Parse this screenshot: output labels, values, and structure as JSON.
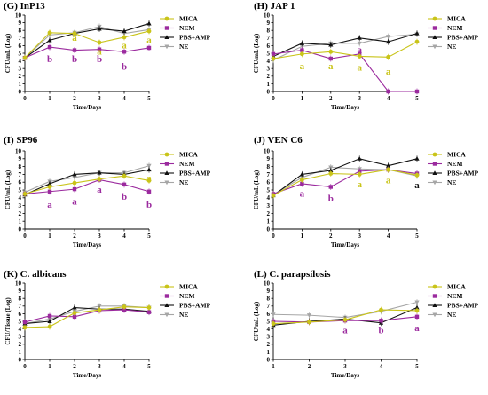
{
  "colors": {
    "MICA": "#c9c419",
    "NEM": "#9b2a9e",
    "PBS+AMP": "#111111",
    "NE": "#a6a6a6"
  },
  "chart_data": [
    {
      "type": "line",
      "title": "(G) InP13",
      "xlabel": "Time/Days",
      "ylabel": "CFU/mL (Log)",
      "xlim": [
        0,
        5
      ],
      "ylim": [
        0,
        10
      ],
      "x": [
        0,
        1,
        2,
        3,
        4,
        5
      ],
      "xticks": [
        "0",
        "1",
        "2",
        "3",
        "4",
        "5"
      ],
      "yticks": [
        "0",
        "1",
        "2",
        "3",
        "4",
        "5",
        "6",
        "7",
        "8",
        "9",
        "10"
      ],
      "series": [
        {
          "name": "MICA",
          "values": [
            4.4,
            7.7,
            7.6,
            6.4,
            7.1,
            7.9
          ]
        },
        {
          "name": "NEM",
          "values": [
            4.4,
            5.8,
            5.4,
            5.5,
            5.2,
            5.7
          ]
        },
        {
          "name": "PBS+AMP",
          "values": [
            4.4,
            6.7,
            7.6,
            8.2,
            7.9,
            8.9
          ]
        },
        {
          "name": "NE",
          "values": [
            4.4,
            7.4,
            7.7,
            8.5,
            7.6,
            8.1
          ]
        }
      ],
      "annotations": [
        {
          "series": "MICA",
          "x": 2,
          "y": 7.1,
          "text": "a"
        },
        {
          "series": "MICA",
          "x": 3,
          "y": 5.3,
          "text": "a"
        },
        {
          "series": "MICA",
          "x": 4,
          "y": 6.1,
          "text": "a"
        },
        {
          "series": "MICA",
          "x": 5,
          "y": 6.8,
          "text": "a"
        },
        {
          "series": "NEM",
          "x": 1,
          "y": 4.3,
          "text": "b"
        },
        {
          "series": "NEM",
          "x": 2,
          "y": 4.3,
          "text": "b"
        },
        {
          "series": "NEM",
          "x": 3,
          "y": 4.3,
          "text": "b"
        },
        {
          "series": "NEM",
          "x": 4,
          "y": 3.3,
          "text": "b"
        }
      ]
    },
    {
      "type": "line",
      "title": "(H) JAP 1",
      "xlabel": "Time/Days",
      "ylabel": "CFU/mL (Log)",
      "xlim": [
        0,
        5
      ],
      "ylim": [
        0,
        10
      ],
      "x": [
        0,
        1,
        2,
        3,
        4,
        5
      ],
      "xticks": [
        "0",
        "1",
        "2",
        "3",
        "4",
        "5"
      ],
      "yticks": [
        "0",
        "1",
        "2",
        "3",
        "4",
        "5",
        "6",
        "7",
        "8",
        "9",
        "10"
      ],
      "series": [
        {
          "name": "MICA",
          "values": [
            4.3,
            4.9,
            5.2,
            4.6,
            4.5,
            6.5
          ]
        },
        {
          "name": "NEM",
          "values": [
            4.9,
            5.4,
            4.3,
            4.9,
            0.0,
            0.0
          ]
        },
        {
          "name": "PBS+AMP",
          "values": [
            4.6,
            6.3,
            6.1,
            7.0,
            6.5,
            7.6
          ]
        },
        {
          "name": "NE",
          "values": [
            4.1,
            5.9,
            6.3,
            6.3,
            7.2,
            7.5
          ]
        }
      ],
      "annotations": [
        {
          "series": "MICA",
          "x": 1,
          "y": 3.4,
          "text": "a"
        },
        {
          "series": "MICA",
          "x": 2,
          "y": 3.4,
          "text": "a"
        },
        {
          "series": "MICA",
          "x": 3,
          "y": 3.2,
          "text": "a"
        },
        {
          "series": "MICA",
          "x": 4,
          "y": 2.7,
          "text": "a"
        },
        {
          "series": "NEM",
          "x": 3,
          "y": 5.5,
          "text": "a"
        }
      ]
    },
    {
      "type": "line",
      "title": "(I) SP96",
      "xlabel": "Time/Days",
      "ylabel": "CFU/mL (Log)",
      "xlim": [
        0,
        5
      ],
      "ylim": [
        0,
        10
      ],
      "x": [
        0,
        1,
        2,
        3,
        4,
        5
      ],
      "xticks": [
        "0",
        "1",
        "2",
        "3",
        "4",
        "5"
      ],
      "yticks": [
        "0",
        "1",
        "2",
        "3",
        "4",
        "5",
        "6",
        "7",
        "8",
        "9",
        "10"
      ],
      "series": [
        {
          "name": "MICA",
          "values": [
            4.5,
            5.4,
            5.9,
            6.4,
            6.8,
            6.2
          ]
        },
        {
          "name": "NEM",
          "values": [
            4.5,
            4.8,
            5.1,
            6.3,
            5.7,
            4.8
          ]
        },
        {
          "name": "PBS+AMP",
          "values": [
            4.4,
            5.8,
            7.0,
            7.2,
            7.0,
            7.6
          ]
        },
        {
          "name": "NE",
          "values": [
            4.7,
            6.1,
            6.6,
            7.2,
            7.2,
            8.1
          ]
        }
      ],
      "annotations": [
        {
          "series": "MICA",
          "x": 5,
          "y": 6.6,
          "text": "a"
        },
        {
          "series": "NEM",
          "x": 1,
          "y": 3.2,
          "text": "a"
        },
        {
          "series": "NEM",
          "x": 2,
          "y": 3.6,
          "text": "a"
        },
        {
          "series": "NEM",
          "x": 3,
          "y": 5.1,
          "text": "a"
        },
        {
          "series": "NEM",
          "x": 4,
          "y": 4.2,
          "text": "b"
        },
        {
          "series": "NEM",
          "x": 5,
          "y": 3.2,
          "text": "b"
        }
      ]
    },
    {
      "type": "line",
      "title": "(J) VEN C6",
      "xlabel": "Time/Days",
      "ylabel": "CFU/mL (Log)",
      "xlim": [
        0,
        5
      ],
      "ylim": [
        0,
        10
      ],
      "x": [
        0,
        1,
        2,
        3,
        4,
        5
      ],
      "xticks": [
        "0",
        "1",
        "2",
        "3",
        "4",
        "5"
      ],
      "yticks": [
        "0",
        "1",
        "2",
        "3",
        "4",
        "5",
        "6",
        "7",
        "8",
        "9",
        "10"
      ],
      "series": [
        {
          "name": "MICA",
          "values": [
            4.3,
            6.3,
            7.1,
            7.0,
            7.6,
            6.9
          ]
        },
        {
          "name": "NEM",
          "values": [
            4.5,
            5.8,
            5.4,
            7.4,
            7.6,
            7.1
          ]
        },
        {
          "name": "PBS+AMP",
          "values": [
            4.3,
            7.0,
            7.5,
            9.0,
            8.1,
            9.0
          ]
        },
        {
          "name": "NE",
          "values": [
            4.4,
            6.6,
            7.9,
            7.7,
            7.6,
            6.8
          ]
        }
      ],
      "annotations": [
        {
          "series": "MICA",
          "x": 3,
          "y": 5.8,
          "text": "a"
        },
        {
          "series": "MICA",
          "x": 4,
          "y": 6.3,
          "text": "a"
        },
        {
          "series": "NEM",
          "x": 1,
          "y": 4.6,
          "text": "a"
        },
        {
          "series": "NEM",
          "x": 2,
          "y": 4.0,
          "text": "b"
        },
        {
          "series": "PBS+AMP",
          "x": 5,
          "y": 5.7,
          "text": "a"
        }
      ]
    },
    {
      "type": "line",
      "title": "(K) C. albicans",
      "xlabel": "Time/Days",
      "ylabel": "CFU/Tissue (Log)",
      "xlim": [
        0,
        5
      ],
      "ylim": [
        0,
        10
      ],
      "x": [
        0,
        1,
        2,
        3,
        4,
        5
      ],
      "xticks": [
        "0",
        "1",
        "2",
        "3",
        "4",
        "5"
      ],
      "yticks": [
        "0",
        "1",
        "2",
        "3",
        "4",
        "5",
        "6",
        "7",
        "8",
        "9",
        "10"
      ],
      "series": [
        {
          "name": "MICA",
          "values": [
            4.2,
            4.3,
            6.1,
            6.5,
            6.9,
            6.8
          ]
        },
        {
          "name": "NEM",
          "values": [
            4.9,
            5.7,
            5.6,
            6.4,
            6.5,
            6.2
          ]
        },
        {
          "name": "PBS+AMP",
          "values": [
            4.7,
            5.0,
            6.8,
            6.6,
            6.6,
            6.3
          ]
        },
        {
          "name": "NE",
          "values": [
            4.7,
            5.3,
            6.3,
            7.0,
            7.0,
            6.8
          ]
        }
      ],
      "annotations": []
    },
    {
      "type": "line",
      "title": "(L) C. parapsilosis",
      "xlabel": "Time/Days",
      "ylabel": "CFU/mL (Log)",
      "xlim": [
        1,
        5
      ],
      "ylim": [
        0,
        10
      ],
      "x": [
        1,
        2,
        3,
        4,
        5
      ],
      "xticks": [
        "1",
        "2",
        "3",
        "4",
        "5"
      ],
      "yticks": [
        "0",
        "1",
        "2",
        "3",
        "4",
        "5",
        "6",
        "7",
        "8",
        "9",
        "10"
      ],
      "series": [
        {
          "name": "MICA",
          "values": [
            4.7,
            4.9,
            5.2,
            6.5,
            6.4
          ]
        },
        {
          "name": "NEM",
          "values": [
            5.0,
            4.9,
            5.1,
            5.1,
            5.6
          ]
        },
        {
          "name": "PBS+AMP",
          "values": [
            4.5,
            5.0,
            5.3,
            4.8,
            6.8
          ]
        },
        {
          "name": "NE",
          "values": [
            5.9,
            5.8,
            5.5,
            6.3,
            7.5
          ]
        }
      ],
      "annotations": [
        {
          "series": "NEM",
          "x": 3,
          "y": 3.9,
          "text": "a"
        },
        {
          "series": "NEM",
          "x": 4,
          "y": 3.9,
          "text": "b"
        },
        {
          "series": "NEM",
          "x": 5,
          "y": 4.2,
          "text": "a"
        }
      ]
    }
  ]
}
